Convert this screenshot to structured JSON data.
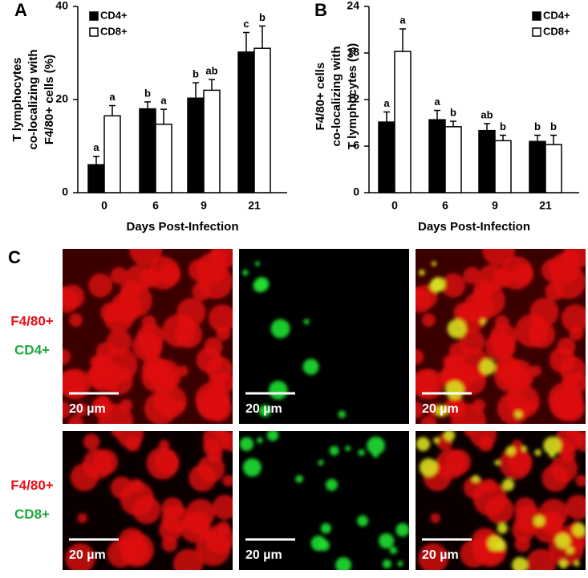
{
  "chart_data": [
    {
      "type": "bar",
      "panel_label": "A",
      "y_label": [
        "T lymphocytes",
        "co-localizing with",
        "F4/80+ cells (%)"
      ],
      "x_label": "Days Post-Infection",
      "categories": [
        "0",
        "6",
        "9",
        "21"
      ],
      "series": [
        {
          "name": "CD4+",
          "color": "#000000",
          "values": [
            6,
            18,
            20.3,
            30.2
          ],
          "errors": [
            1.8,
            1.5,
            3.3,
            4.2
          ],
          "annotations": [
            "a",
            "b",
            "b",
            "c"
          ]
        },
        {
          "name": "CD8+",
          "color": "#ffffff",
          "values": [
            16.5,
            14.7,
            22,
            31
          ],
          "errors": [
            2.2,
            3.2,
            2.3,
            4.8
          ],
          "annotations": [
            "a",
            "a",
            "ab",
            "b"
          ]
        }
      ],
      "ylim": [
        0,
        40
      ],
      "yticks": [
        0,
        20,
        40
      ],
      "legend": "upper left"
    },
    {
      "type": "bar",
      "panel_label": "B",
      "y_label": [
        "F4/80+ cells",
        "co-localizing with",
        "T lymphocytes (%)"
      ],
      "x_label": "Days Post-Infection",
      "categories": [
        "0",
        "6",
        "9",
        "21"
      ],
      "series": [
        {
          "name": "CD4+",
          "color": "#000000",
          "values": [
            9.1,
            9.4,
            8,
            6.6
          ],
          "errors": [
            1.3,
            1.2,
            0.9,
            0.8
          ],
          "annotations": [
            "a",
            "a",
            "ab",
            "b"
          ]
        },
        {
          "name": "CD8+",
          "color": "#ffffff",
          "values": [
            18.2,
            8.5,
            6.7,
            6.2
          ],
          "errors": [
            2.9,
            0.7,
            0.7,
            1.2
          ],
          "annotations": [
            "a",
            "b",
            "b",
            "b"
          ]
        }
      ],
      "ylim": [
        0,
        24
      ],
      "yticks": [
        0,
        6,
        12,
        18,
        24
      ],
      "legend": "upper right"
    }
  ],
  "image_panel": {
    "label": "C",
    "scale_bar": "20 µm",
    "rows": [
      {
        "markers": [
          {
            "text": "F4/80+",
            "color": "#e8101a"
          },
          {
            "text": "CD4+",
            "color": "#1aaa3a"
          }
        ]
      },
      {
        "markers": [
          {
            "text": "F4/80+",
            "color": "#e8101a"
          },
          {
            "text": "CD8+",
            "color": "#1aaa3a"
          }
        ]
      }
    ]
  }
}
